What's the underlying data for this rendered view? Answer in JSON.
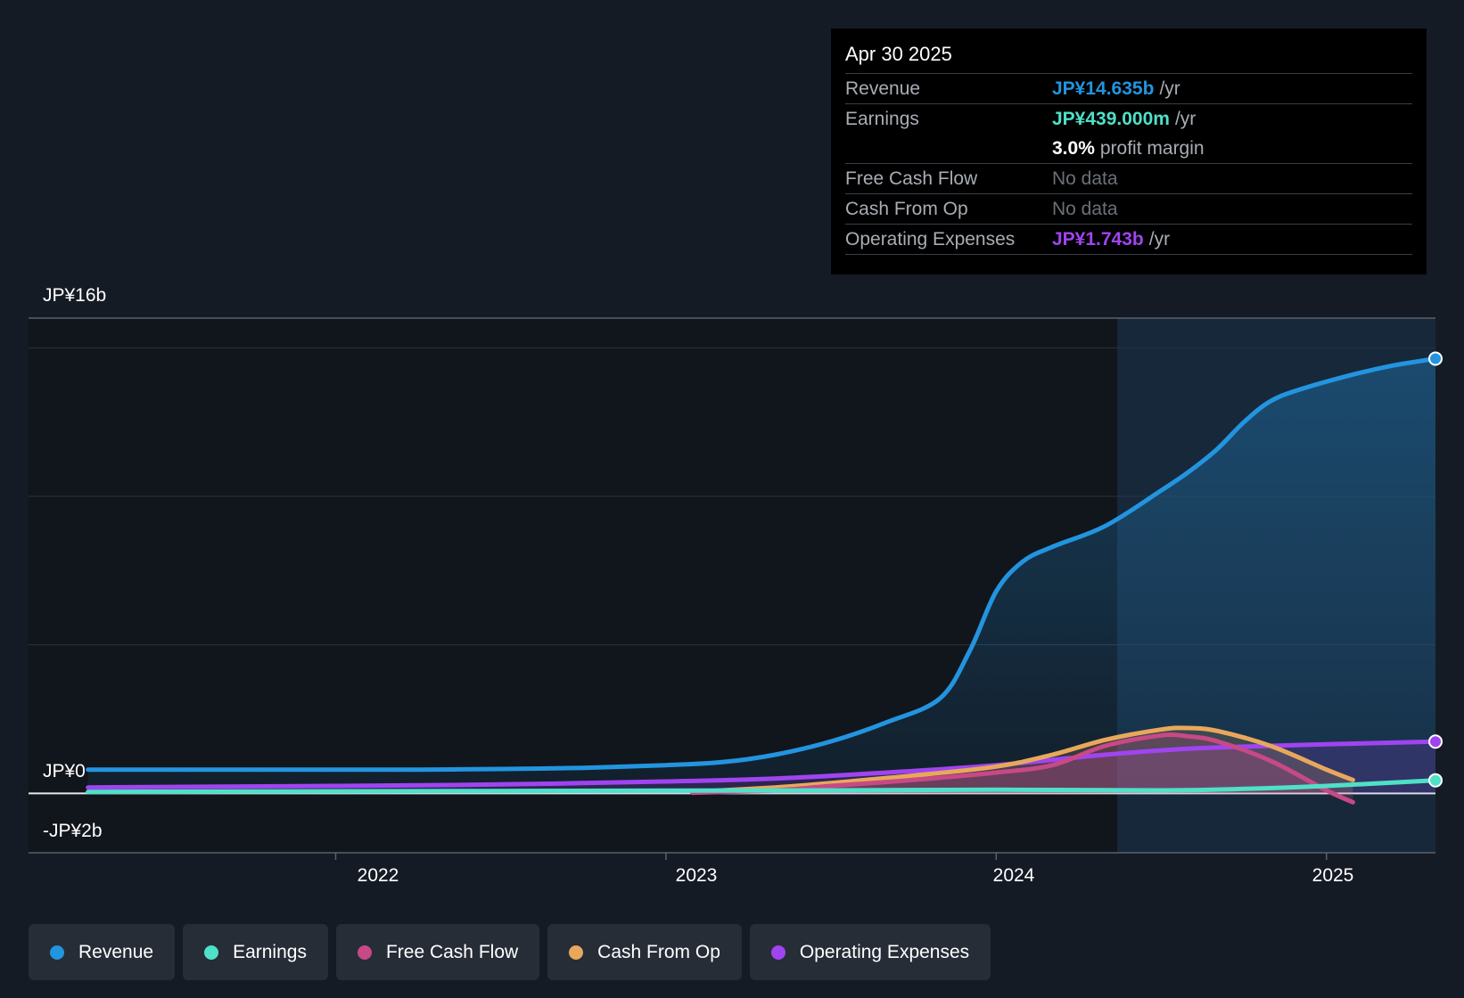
{
  "chart_data": {
    "type": "area",
    "y_ticks": [
      "JP¥16b",
      "JP¥0",
      "-JP¥2b"
    ],
    "x_ticks": [
      "2022",
      "2023",
      "2024",
      "2025"
    ],
    "ylim": [
      -2,
      16
    ],
    "x_range": [
      2021.07,
      2025.33
    ],
    "forecast_start": 2024.33,
    "series": [
      {
        "name": "Revenue",
        "color": "#2394df",
        "x": [
          2021.25,
          2021.5,
          2021.75,
          2022.0,
          2022.25,
          2022.5,
          2022.75,
          2023.0,
          2023.17,
          2023.33,
          2023.5,
          2023.67,
          2023.83,
          2023.92,
          2024.0,
          2024.08,
          2024.17,
          2024.33,
          2024.5,
          2024.58,
          2024.67,
          2024.75,
          2024.83,
          2024.92,
          2025.08,
          2025.2,
          2025.33
        ],
        "y": [
          0.8,
          0.8,
          0.8,
          0.8,
          0.8,
          0.82,
          0.86,
          0.95,
          1.05,
          1.3,
          1.75,
          2.4,
          3.2,
          4.8,
          6.8,
          7.8,
          8.3,
          9.0,
          10.2,
          10.8,
          11.6,
          12.5,
          13.2,
          13.6,
          14.1,
          14.4,
          14.635
        ]
      },
      {
        "name": "Earnings",
        "color": "#4fe0c8",
        "x": [
          2021.25,
          2022.0,
          2023.0,
          2023.5,
          2024.0,
          2024.5,
          2024.75,
          2025.0,
          2025.33
        ],
        "y": [
          0.05,
          0.07,
          0.09,
          0.1,
          0.12,
          0.1,
          0.15,
          0.25,
          0.439
        ]
      },
      {
        "name": "Free Cash Flow",
        "color": "#c74986",
        "x": [
          2023.08,
          2023.33,
          2023.5,
          2023.75,
          2024.0,
          2024.17,
          2024.33,
          2024.5,
          2024.58,
          2024.67,
          2024.83,
          2025.0,
          2025.08
        ],
        "y": [
          0.02,
          0.1,
          0.25,
          0.45,
          0.7,
          0.95,
          1.6,
          1.95,
          1.92,
          1.75,
          1.1,
          0.1,
          -0.3
        ]
      },
      {
        "name": "Cash From Op",
        "color": "#e8a85c",
        "x": [
          2023.08,
          2023.33,
          2023.5,
          2023.75,
          2024.0,
          2024.17,
          2024.33,
          2024.5,
          2024.58,
          2024.67,
          2024.83,
          2025.0,
          2025.08
        ],
        "y": [
          0.05,
          0.2,
          0.35,
          0.6,
          0.9,
          1.3,
          1.8,
          2.15,
          2.2,
          2.1,
          1.6,
          0.8,
          0.45
        ]
      },
      {
        "name": "Operating Expenses",
        "color": "#a044f0",
        "x": [
          2021.25,
          2022.0,
          2022.5,
          2023.0,
          2023.33,
          2023.67,
          2024.0,
          2024.33,
          2024.58,
          2024.83,
          2025.0,
          2025.33
        ],
        "y": [
          0.2,
          0.25,
          0.3,
          0.4,
          0.5,
          0.7,
          0.95,
          1.3,
          1.5,
          1.6,
          1.65,
          1.743
        ]
      }
    ]
  },
  "tooltip": {
    "date": "Apr 30 2025",
    "rows": [
      {
        "label": "Revenue",
        "value": "JP¥14.635b",
        "unit": "/yr",
        "color": "#2394df"
      },
      {
        "label": "Earnings",
        "value": "JP¥439.000m",
        "unit": "/yr",
        "color": "#4fe0c8"
      },
      {
        "label": "",
        "value": "3.0%",
        "unit": "profit margin",
        "color": "#ffffff"
      },
      {
        "label": "Free Cash Flow",
        "value": "No data",
        "unit": "",
        "color": ""
      },
      {
        "label": "Cash From Op",
        "value": "No data",
        "unit": "",
        "color": ""
      },
      {
        "label": "Operating Expenses",
        "value": "JP¥1.743b",
        "unit": "/yr",
        "color": "#a044f0"
      }
    ]
  },
  "legend": [
    {
      "label": "Revenue",
      "color": "#2394df"
    },
    {
      "label": "Earnings",
      "color": "#4fe0c8"
    },
    {
      "label": "Free Cash Flow",
      "color": "#c74986"
    },
    {
      "label": "Cash From Op",
      "color": "#e8a85c"
    },
    {
      "label": "Operating Expenses",
      "color": "#a044f0"
    }
  ]
}
